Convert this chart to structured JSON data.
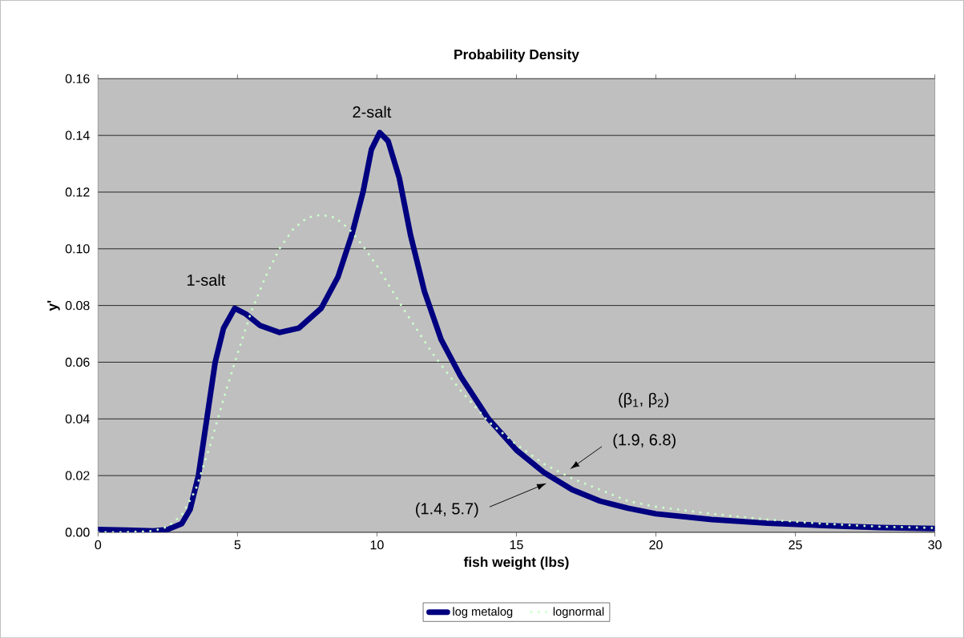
{
  "chart_data": {
    "type": "line",
    "title": "Probability Density",
    "xlabel": "fish weight (lbs)",
    "ylabel": "y'",
    "xlim": [
      0,
      30
    ],
    "xticks": [
      0,
      5,
      10,
      15,
      20,
      25,
      30
    ],
    "ylim": [
      0,
      0.16
    ],
    "yticks": [
      {
        "value": 0,
        "label": "0.00"
      },
      {
        "value": 0.02,
        "label": "0.02"
      },
      {
        "value": 0.04,
        "label": "0.04"
      },
      {
        "value": 0.06,
        "label": "0.06"
      },
      {
        "value": 0.08,
        "label": "0.08"
      },
      {
        "value": 0.1,
        "label": "0.10"
      },
      {
        "value": 0.12,
        "label": "0.12"
      },
      {
        "value": 0.14,
        "label": "0.14"
      },
      {
        "value": 0.16,
        "label": "0.16"
      }
    ],
    "grid": "y",
    "legend": "bottom",
    "series": [
      {
        "name": "log metalog",
        "color": "#000080",
        "line_style": "solid",
        "x": [
          0,
          1,
          2,
          2.5,
          3,
          3.3,
          3.6,
          3.9,
          4.2,
          4.5,
          4.9,
          5.3,
          5.8,
          6.5,
          7.2,
          8,
          8.6,
          9.1,
          9.5,
          9.8,
          10.1,
          10.4,
          10.8,
          11.2,
          11.7,
          12.3,
          13,
          14,
          15,
          16,
          17,
          18,
          19,
          20,
          22,
          24,
          26,
          28,
          30
        ],
        "values": [
          0.001,
          0.0008,
          0.0005,
          0.001,
          0.003,
          0.008,
          0.02,
          0.04,
          0.06,
          0.072,
          0.079,
          0.077,
          0.073,
          0.0705,
          0.072,
          0.079,
          0.09,
          0.105,
          0.12,
          0.135,
          0.141,
          0.138,
          0.125,
          0.105,
          0.085,
          0.068,
          0.055,
          0.04,
          0.029,
          0.021,
          0.015,
          0.011,
          0.0085,
          0.0065,
          0.0045,
          0.0032,
          0.0024,
          0.0017,
          0.0013
        ]
      },
      {
        "name": "lognormal",
        "color": "#ccffcc",
        "line_style": "dotted",
        "x": [
          0,
          1,
          2,
          2.5,
          3,
          3.5,
          4,
          4.5,
          5,
          5.5,
          6,
          6.5,
          7,
          7.5,
          8,
          8.5,
          9,
          9.5,
          10,
          10.5,
          11,
          12,
          13,
          14,
          15,
          16,
          17,
          18,
          19,
          20,
          22,
          24,
          26,
          28,
          30
        ],
        "values": [
          0,
          0,
          0.0005,
          0.002,
          0.006,
          0.015,
          0.03,
          0.047,
          0.063,
          0.078,
          0.09,
          0.1,
          0.107,
          0.111,
          0.112,
          0.111,
          0.107,
          0.101,
          0.094,
          0.086,
          0.078,
          0.063,
          0.05,
          0.039,
          0.031,
          0.024,
          0.019,
          0.015,
          0.011,
          0.009,
          0.0065,
          0.0045,
          0.003,
          0.002,
          0.0015
        ]
      }
    ],
    "annotations": [
      {
        "text": "1-salt",
        "x": 4.9,
        "y": 0.08
      },
      {
        "text": "2-salt",
        "x": 10.1,
        "y": 0.141
      },
      "(β$_{1}$, β$_{2}$)",
      "(1.9, 6.8)",
      "(1.4, 5.7)"
    ]
  }
}
